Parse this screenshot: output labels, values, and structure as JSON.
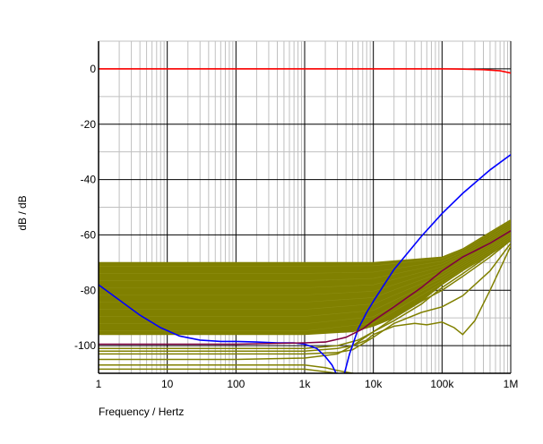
{
  "chart_data": {
    "type": "line",
    "xlabel": "Frequency / Hertz",
    "ylabel": "dB / dB",
    "x_scale": "log",
    "xlim": [
      1,
      1000000
    ],
    "ylim": [
      -110,
      10
    ],
    "xticks": [
      {
        "value": 1,
        "label": "1"
      },
      {
        "value": 10,
        "label": "10"
      },
      {
        "value": 100,
        "label": "100"
      },
      {
        "value": 1000,
        "label": "1k"
      },
      {
        "value": 10000,
        "label": "10k"
      },
      {
        "value": 100000,
        "label": "100k"
      },
      {
        "value": 1000000,
        "label": "1M"
      }
    ],
    "yticks": [
      {
        "value": 0,
        "label": "0"
      },
      {
        "value": -20,
        "label": "-20"
      },
      {
        "value": -40,
        "label": "-40"
      },
      {
        "value": -60,
        "label": "-60"
      },
      {
        "value": -80,
        "label": "-80"
      },
      {
        "value": -100,
        "label": "-100"
      }
    ],
    "grid": true,
    "colors": {
      "red": "#ff0000",
      "blue": "#0000ff",
      "olive": "#808000",
      "purple": "#800040",
      "major_grid": "#000000",
      "minor_grid": "#c0c0c0"
    },
    "series": [
      {
        "color": "#ff0000",
        "x": [
          1,
          10,
          100,
          1000,
          10000,
          100000,
          200000,
          400000,
          700000,
          1000000
        ],
        "y": [
          0,
          0,
          0,
          0,
          0,
          0,
          -0.1,
          -0.3,
          -0.7,
          -1.5
        ]
      },
      {
        "color": "#0000ff",
        "x": [
          1,
          2,
          4,
          8,
          15,
          30,
          60,
          100,
          200,
          400,
          700,
          1000,
          1500,
          2000,
          2500,
          3000
        ],
        "y": [
          -78,
          -83.5,
          -89,
          -93.5,
          -96.5,
          -98,
          -98.5,
          -98.5,
          -98.7,
          -99,
          -99,
          -99.5,
          -101,
          -104,
          -107,
          -111
        ]
      },
      {
        "color": "#0000ff",
        "x": [
          3700,
          4500,
          6000,
          8000,
          10000,
          20000,
          50000,
          100000,
          200000,
          500000,
          1000000
        ],
        "y": [
          -111,
          -103,
          -94,
          -88,
          -84,
          -72.5,
          -60.5,
          -52.3,
          -45,
          -36.5,
          -31
        ]
      },
      {
        "color": "#800040",
        "x": [
          1,
          10,
          100,
          1000,
          2000,
          4000,
          7000,
          10000,
          20000,
          50000,
          100000,
          200000,
          500000,
          1000000
        ],
        "y": [
          -99.5,
          -99.5,
          -99.5,
          -99,
          -98.7,
          -97,
          -94,
          -91,
          -86,
          -79,
          -73,
          -68,
          -63,
          -58.5
        ]
      }
    ],
    "olive_band": {
      "color": "#808000",
      "upper": {
        "x": [
          1,
          1000,
          10000,
          100000,
          200000,
          500000,
          1000000
        ],
        "y": [
          -70,
          -70,
          -70,
          -68,
          -65,
          -59,
          -54.5
        ]
      },
      "lower": {
        "x": [
          1,
          1000,
          5000,
          10000,
          20000,
          50000,
          100000,
          200000,
          500000,
          1000000
        ],
        "y": [
          -96,
          -96,
          -95,
          -93,
          -90,
          -84,
          -78,
          -73,
          -67,
          -62
        ]
      }
    },
    "olive_outliers": [
      {
        "x": [
          1,
          100,
          1000,
          3000,
          6000,
          10000,
          20000,
          50000,
          100000,
          200000,
          500000,
          1000000
        ],
        "y": [
          -101,
          -101,
          -101,
          -100,
          -98,
          -95,
          -91,
          -85,
          -79,
          -74,
          -67,
          -62
        ]
      },
      {
        "x": [
          1,
          100,
          1000,
          3000,
          5000,
          8000,
          10000,
          20000,
          40000,
          60000,
          100000,
          150000,
          200000,
          300000,
          500000,
          1000000
        ],
        "y": [
          -102,
          -102,
          -102,
          -101,
          -100,
          -98,
          -96,
          -93,
          -92,
          -92.5,
          -91.5,
          -93.5,
          -96,
          -91,
          -80,
          -64
        ]
      },
      {
        "x": [
          1,
          100,
          1000,
          3000,
          5000,
          10000,
          20000,
          50000,
          100000,
          200000,
          500000,
          1000000
        ],
        "y": [
          -103,
          -103,
          -103,
          -102.5,
          -101.5,
          -97,
          -92,
          -88,
          -86,
          -82,
          -73,
          -63
        ]
      },
      {
        "x": [
          1,
          100,
          1000,
          2000,
          3000,
          5000,
          8000
        ],
        "y": [
          -107,
          -107,
          -107,
          -108,
          -109,
          -110,
          -111
        ]
      },
      {
        "x": [
          1,
          100,
          1000,
          3000,
          5000
        ],
        "y": [
          -108.5,
          -108.5,
          -108.5,
          -110,
          -111
        ]
      },
      {
        "x": [
          1,
          10,
          100,
          1000,
          3000,
          5000,
          10000,
          20000,
          50000,
          100000,
          200000,
          500000,
          1000000
        ],
        "y": [
          -105,
          -105,
          -105,
          -104.5,
          -103,
          -100,
          -95,
          -90,
          -84,
          -80,
          -75,
          -68,
          -62
        ]
      }
    ]
  }
}
